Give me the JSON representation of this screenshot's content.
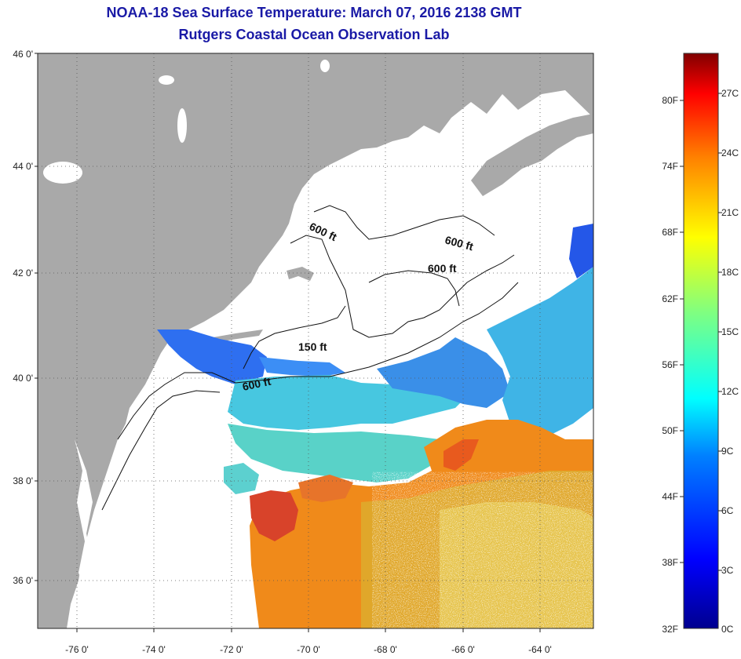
{
  "header": {
    "title": "NOAA-18 Sea Surface Temperature:  March 07, 2016 2138 GMT",
    "subtitle": "Rutgers Coastal Ocean Observation Lab"
  },
  "axes": {
    "lat_labels": [
      "46 0'",
      "44 0'",
      "42 0'",
      "40 0'",
      "38 0'",
      "36 0'"
    ],
    "lon_labels": [
      "-76 0'",
      "-74 0'",
      "-72 0'",
      "-70 0'",
      "-68 0'",
      "-66 0'",
      "-64 0'"
    ]
  },
  "contour_labels": [
    "600 ft",
    "600 ft",
    "600 ft",
    "150 ft",
    "600 ft"
  ],
  "colorbar": {
    "fahrenheit_labels": [
      "80F",
      "74F",
      "68F",
      "62F",
      "56F",
      "50F",
      "44F",
      "38F",
      "32F"
    ],
    "celsius_labels": [
      "27C",
      "24C",
      "21C",
      "18C",
      "15C",
      "12C",
      "9C",
      "6C",
      "3C",
      "0C"
    ],
    "colors": [
      "#00008f",
      "#0000ff",
      "#0080ff",
      "#00ffff",
      "#80ff80",
      "#ffff00",
      "#ff8000",
      "#ff0000",
      "#800000"
    ]
  },
  "colors": {
    "land": "#a9a9a9",
    "title": "#1a1aa6"
  }
}
